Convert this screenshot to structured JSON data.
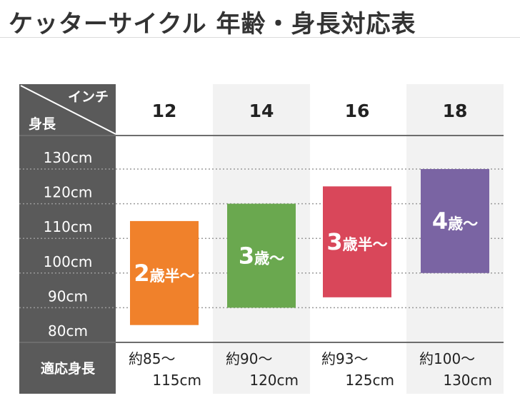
{
  "title": "ケッターサイクル 年齢・身長対応表",
  "chart_data": {
    "type": "bar",
    "header": {
      "column_label": "インチ",
      "row_label": "身長"
    },
    "categories": [
      "12",
      "14",
      "16",
      "18"
    ],
    "y_axis": {
      "unit": "cm",
      "ticks": [
        "130cm",
        "120cm",
        "110cm",
        "100cm",
        "90cm",
        "80cm"
      ],
      "tick_values": [
        130,
        120,
        110,
        100,
        90,
        80
      ],
      "ylim": [
        80,
        130
      ]
    },
    "series": [
      {
        "ranges": [
          [
            85,
            115
          ],
          [
            90,
            120
          ],
          [
            93,
            125
          ],
          [
            100,
            130
          ]
        ],
        "labels": [
          {
            "num": "2",
            "unit": "歳半～"
          },
          {
            "num": "3",
            "unit": "歳～"
          },
          {
            "num": "3",
            "unit": "歳半～"
          },
          {
            "num": "4",
            "unit": "歳～"
          }
        ],
        "colors": [
          "#f0812b",
          "#6aa84f",
          "#d9475a",
          "#7a64a3"
        ]
      }
    ],
    "footer": {
      "row_label": "適応身長",
      "values": [
        {
          "line1": "約85～",
          "line2": "115cm"
        },
        {
          "line1": "約90～",
          "line2": "120cm"
        },
        {
          "line1": "約93～",
          "line2": "125cm"
        },
        {
          "line1": "約100～",
          "line2": "130cm"
        }
      ]
    },
    "grid": true,
    "legend": "none",
    "colors": {
      "left_panel": "#5a5a5a",
      "shaded_column": "#f2f2f2",
      "text": "#222222"
    }
  }
}
